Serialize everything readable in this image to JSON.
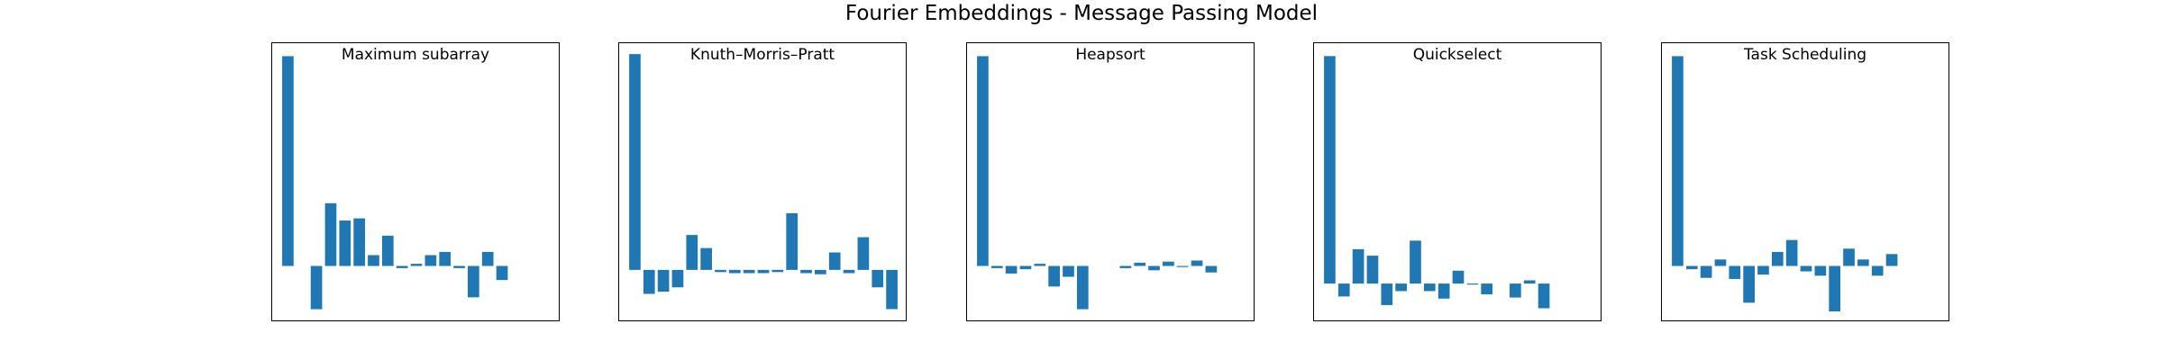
{
  "figure": {
    "title": "Fourier Embeddings - Message Passing Model"
  },
  "style": {
    "bar_color": "#1f77b4"
  },
  "chart_data": [
    {
      "type": "bar",
      "title": "Maximum subarray",
      "xlabel": "",
      "ylabel": "",
      "x": [
        0,
        1,
        2,
        3,
        4,
        5,
        6,
        7,
        8,
        9,
        10,
        11,
        12,
        13,
        14,
        15,
        16,
        17,
        18,
        19
      ],
      "values": [
        0.97,
        0,
        -0.2,
        0.29,
        0.21,
        0.22,
        0.05,
        0.14,
        -0.01,
        0.01,
        0.05,
        0.065,
        -0.01,
        -0.145,
        0.065,
        -0.065,
        0,
        0,
        0,
        0
      ],
      "ylim": [
        -0.26,
        1.03
      ],
      "grid": false
    },
    {
      "type": "bar",
      "title": "Knuth–Morris–Pratt",
      "xlabel": "",
      "ylabel": "",
      "x": [
        0,
        1,
        2,
        3,
        4,
        5,
        6,
        7,
        8,
        9,
        10,
        11,
        12,
        13,
        14,
        15,
        16,
        17,
        18,
        19
      ],
      "values": [
        0.99,
        -0.11,
        -0.1,
        -0.08,
        0.16,
        0.1,
        -0.01,
        -0.015,
        -0.015,
        -0.015,
        -0.01,
        0.26,
        -0.015,
        -0.02,
        0.08,
        -0.015,
        0.15,
        -0.08,
        -0.18,
        0
      ],
      "ylim": [
        -0.24,
        1.04
      ],
      "grid": false
    },
    {
      "type": "bar",
      "title": "Heapsort",
      "xlabel": "",
      "ylabel": "",
      "x": [
        0,
        1,
        2,
        3,
        4,
        5,
        6,
        7,
        8,
        9,
        10,
        11,
        12,
        13,
        14,
        15,
        16,
        17,
        18,
        19
      ],
      "values": [
        0.97,
        -0.01,
        -0.035,
        -0.015,
        0.01,
        -0.095,
        -0.05,
        -0.2,
        0,
        0,
        -0.01,
        0.015,
        -0.02,
        0.02,
        -0.005,
        0.025,
        -0.03,
        0,
        0,
        0
      ],
      "ylim": [
        -0.26,
        1.03
      ],
      "grid": false
    },
    {
      "type": "bar",
      "title": "Quickselect",
      "xlabel": "",
      "ylabel": "",
      "x": [
        0,
        1,
        2,
        3,
        4,
        5,
        6,
        7,
        8,
        9,
        10,
        11,
        12,
        13,
        14,
        15,
        16,
        17,
        18,
        19
      ],
      "values": [
        1.06,
        -0.06,
        0.16,
        0.13,
        -0.1,
        -0.035,
        0.2,
        -0.035,
        -0.07,
        0.06,
        -0.005,
        -0.05,
        0,
        -0.065,
        0.015,
        -0.115,
        0,
        0,
        0,
        0
      ],
      "ylim": [
        -0.18,
        1.12
      ],
      "grid": false
    },
    {
      "type": "bar",
      "title": "Task Scheduling",
      "xlabel": "",
      "ylabel": "",
      "x": [
        0,
        1,
        2,
        3,
        4,
        5,
        6,
        7,
        8,
        9,
        10,
        11,
        12,
        13,
        14,
        15,
        16,
        17,
        18,
        19
      ],
      "values": [
        0.97,
        -0.015,
        -0.055,
        0.03,
        -0.06,
        -0.17,
        -0.04,
        0.065,
        0.12,
        -0.025,
        -0.045,
        -0.21,
        0.08,
        0.03,
        -0.045,
        0.055,
        0,
        0,
        0,
        0
      ],
      "ylim": [
        -0.26,
        1.03
      ],
      "grid": false
    }
  ]
}
